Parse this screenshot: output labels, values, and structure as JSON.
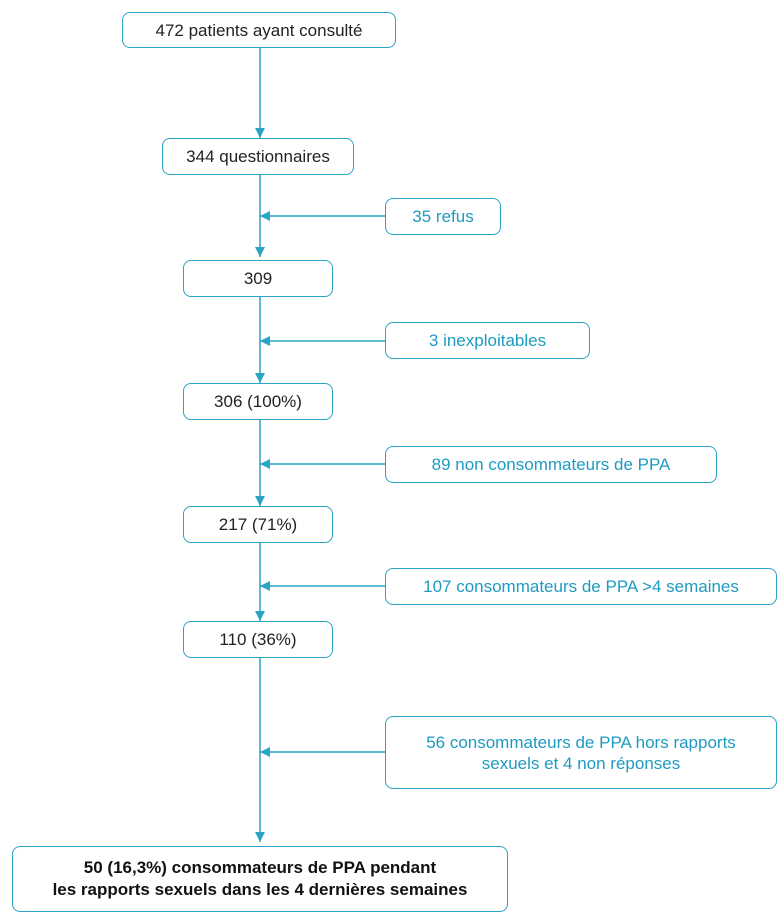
{
  "colors": {
    "accent": "#2aa3c4",
    "main_text": "#222222",
    "exclusion_text": "#1e9bc0"
  },
  "flow": {
    "n472": "472 patients ayant consulté",
    "n344": "344 questionnaires",
    "n309": "309",
    "n306": "306 (100%)",
    "n217": "217 (71%)",
    "n110": "110 (36%)",
    "final": "50 (16,3%) consommateurs de PPA pendant\nles rapports sexuels dans les 4 dernières semaines"
  },
  "exclusions": {
    "refus": "35 refus",
    "inexploitables": "3 inexploitables",
    "non_consommateurs": "89 non consommateurs de PPA",
    "plus_4_semaines": "107 consommateurs de PPA >4 semaines",
    "hors_rapports": "56 consommateurs de PPA hors rapports\nsexuels et 4 non réponses"
  }
}
